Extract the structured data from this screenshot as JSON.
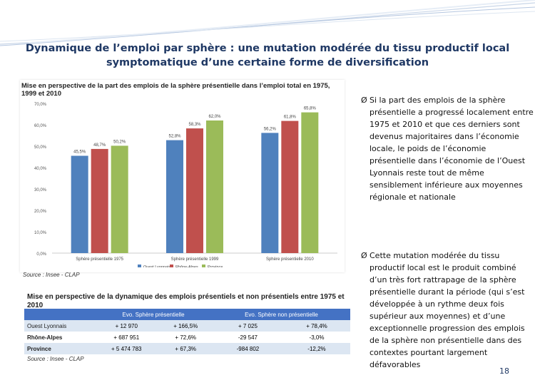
{
  "slide": {
    "title": "Dynamique de l’emploi par sphère : une mutation modérée du tissu productif local symptomatique d’une certaine forme de diversification",
    "page_number": "18"
  },
  "chart_data": {
    "type": "bar",
    "title": "Mise en perspective de la part des emplois de la sphère présentielle dans l’emploi total en 1975, 1999 et 2010",
    "categories": [
      "Sphère présentielle 1975",
      "Sphère présentielle 1999",
      "Sphère présentielle 2010"
    ],
    "series": [
      {
        "name": "Ouest Lyonnais",
        "values": [
          45.5,
          52.8,
          56.2
        ],
        "labels": [
          "45,5%",
          "52,8%",
          "56,2%"
        ],
        "color": "#4f81bd"
      },
      {
        "name": "Rhône-Alpes",
        "values": [
          48.7,
          58.3,
          61.8
        ],
        "labels": [
          "48,7%",
          "58,3%",
          "61,8%"
        ],
        "color": "#c0504d"
      },
      {
        "name": "Province",
        "values": [
          50.2,
          62.0,
          65.8
        ],
        "labels": [
          "50,2%",
          "62,0%",
          "65,8%"
        ],
        "color": "#9bbb59"
      }
    ],
    "yticks": [
      0,
      10,
      20,
      30,
      40,
      50,
      60,
      70
    ],
    "ytick_labels": [
      "0,0%",
      "10,0%",
      "20,0%",
      "30,0%",
      "40,0%",
      "50,0%",
      "60,0%",
      "70,0%"
    ],
    "ylim": [
      0,
      70
    ],
    "source": "Source : Insee - CLAP",
    "legend_position": "bottom"
  },
  "table": {
    "title": "Mise en perspective de la dynamique des emplois présentiels et non présentiels entre 1975 et 2010",
    "headers": [
      "",
      "Evo. Sphère présentielle",
      "",
      "Evo. Sphère non présentielle",
      ""
    ],
    "rows": [
      {
        "label": "Ouest Lyonnais",
        "c1": "+ 12 970",
        "c2": "+ 166,5%",
        "c3": "+ 7 025",
        "c4": "+ 78,4%"
      },
      {
        "label": "Rhône-Alpes",
        "c1": "+ 687 951",
        "c2": "+ 72,6%",
        "c3": "-29 547",
        "c4": "-3,0%"
      },
      {
        "label": "Province",
        "c1": "+ 5 474 783",
        "c2": "+ 67,3%",
        "c3": "-984 802",
        "c4": "-12,2%"
      }
    ],
    "source": "Source : Insee - CLAP"
  },
  "bullets": [
    {
      "marker": "Ø",
      "text": "Si la part des emplois de la sphère présentielle a progressé localement entre 1975 et 2010 et que ces derniers sont devenus majoritaires dans l’économie locale, le poids de l’économie présentielle dans l’économie de l’Ouest Lyonnais reste tout de même sensiblement inférieure aux moyennes régionale et nationale"
    },
    {
      "marker": "Ø",
      "text": "Cette mutation modérée du tissu productif local est le produit combiné d’un très fort rattrapage de la sphère présentielle durant la période (qui s’est développée à un rythme deux fois supérieur aux moyennes)  et d’une exceptionnelle progression des emplois de la sphère non présentielle dans des contextes pourtant largement défavorables"
    }
  ]
}
